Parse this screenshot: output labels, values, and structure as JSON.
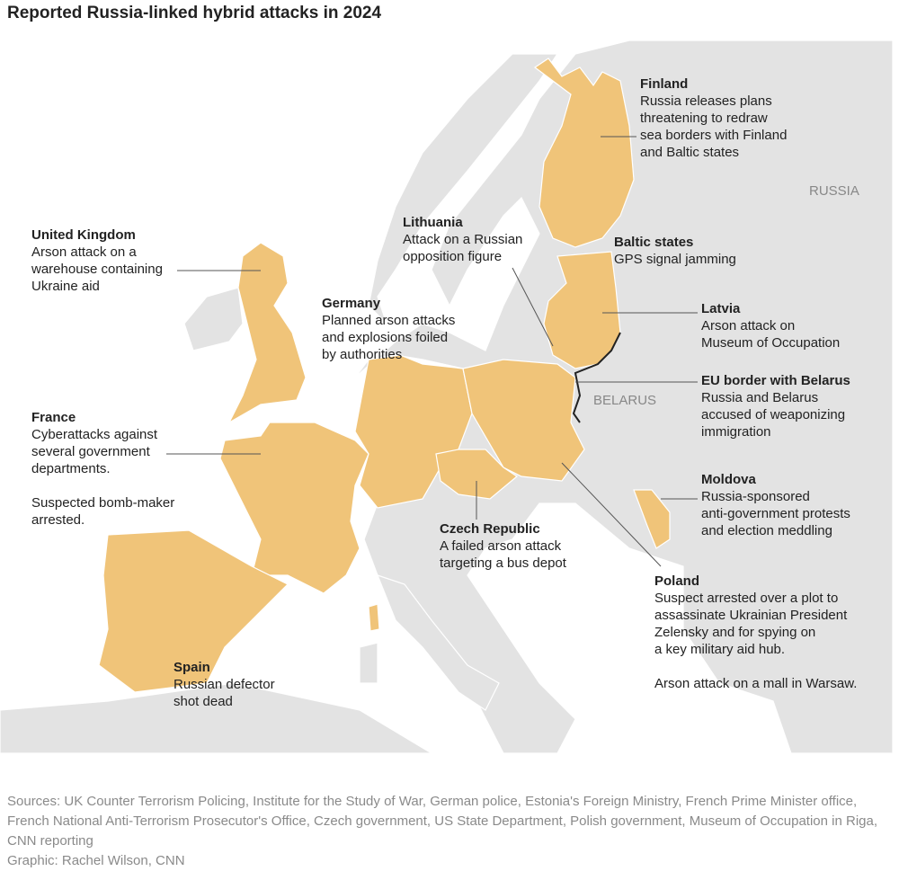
{
  "title": "Reported Russia-linked hybrid attacks in 2024",
  "map_labels": [
    "RUSSIA",
    "BELARUS"
  ],
  "annotations": [
    {
      "name": "Finland",
      "lines": [
        "Russia releases plans",
        "threatening to redraw",
        "sea borders with Finland",
        "and Baltic states"
      ]
    },
    {
      "name": "United Kingdom",
      "lines": [
        "Arson attack on a",
        "warehouse containing",
        "Ukraine aid"
      ]
    },
    {
      "name": "Lithuania",
      "lines": [
        "Attack on a Russian",
        "opposition figure"
      ]
    },
    {
      "name": "Baltic states",
      "lines": [
        "GPS signal jamming"
      ]
    },
    {
      "name": "Germany",
      "lines": [
        "Planned arson attacks",
        "and explosions foiled",
        "by authorities"
      ]
    },
    {
      "name": "Latvia",
      "lines": [
        "Arson attack on",
        "Museum of Occupation"
      ]
    },
    {
      "name": "EU border with Belarus",
      "lines": [
        "Russia and Belarus",
        "accused of weaponizing",
        "immigration"
      ]
    },
    {
      "name": "France",
      "lines": [
        "Cyberattacks against",
        "several government",
        "departments.",
        "",
        "Suspected bomb-maker",
        "arrested."
      ]
    },
    {
      "name": "Moldova",
      "lines": [
        "Russia-sponsored",
        "anti-government protests",
        "and election meddling"
      ]
    },
    {
      "name": "Czech Republic",
      "lines": [
        "A failed arson attack",
        "targeting a bus depot"
      ]
    },
    {
      "name": "Poland",
      "lines": [
        "Suspect arrested over a plot to",
        "assassinate Ukrainian President",
        "Zelensky and for spying on",
        "a key military aid hub.",
        "",
        "Arson attack on a mall in Warsaw."
      ]
    },
    {
      "name": "Spain",
      "lines": [
        "Russian defector",
        "shot dead"
      ]
    }
  ],
  "sources": "Sources: UK Counter Terrorism Policing, Institute for the Study of War, German police, Estonia's Foreign Ministry, French Prime Minister office, French National Anti-Terrorism Prosecutor's Office, Czech government, US State Department, Polish government, Museum of Occupation in Riga, CNN reporting",
  "credit": "Graphic: Rachel Wilson, CNN"
}
